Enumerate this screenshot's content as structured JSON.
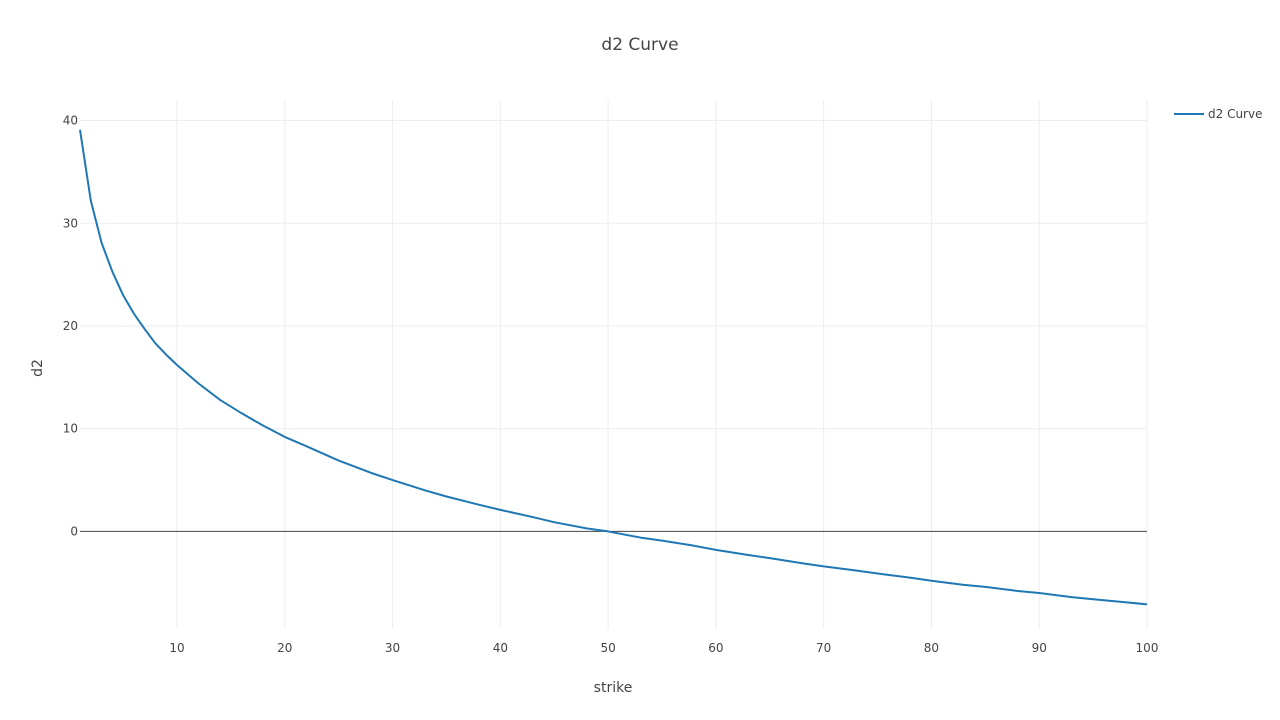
{
  "chart_data": {
    "type": "line",
    "title": "d2 Curve",
    "xlabel": "strike",
    "ylabel": "d2",
    "xlim": [
      1,
      100
    ],
    "ylim": [
      -9.5,
      42
    ],
    "x_ticks": [
      10,
      20,
      30,
      40,
      50,
      60,
      70,
      80,
      90,
      100
    ],
    "y_ticks": [
      0,
      10,
      20,
      30,
      40
    ],
    "grid": true,
    "zero_line": true,
    "legend_position": "top-right",
    "series": [
      {
        "name": "d2 Curve",
        "color": "#1f77b4",
        "x": [
          1,
          2,
          3,
          4,
          5,
          6,
          7,
          8,
          9,
          10,
          12,
          14,
          16,
          18,
          20,
          22,
          25,
          28,
          30,
          33,
          35,
          38,
          40,
          43,
          45,
          48,
          50,
          53,
          55,
          58,
          60,
          63,
          65,
          68,
          70,
          73,
          75,
          78,
          80,
          83,
          85,
          88,
          90,
          93,
          95,
          98,
          100
        ],
        "y": [
          39.1,
          32.2,
          28.1,
          25.3,
          23.0,
          21.2,
          19.7,
          18.3,
          17.2,
          16.2,
          14.4,
          12.8,
          11.5,
          10.3,
          9.2,
          8.3,
          6.9,
          5.7,
          5.0,
          4.0,
          3.4,
          2.6,
          2.1,
          1.4,
          0.9,
          0.3,
          0.0,
          -0.6,
          -0.9,
          -1.4,
          -1.8,
          -2.3,
          -2.6,
          -3.1,
          -3.4,
          -3.8,
          -4.1,
          -4.5,
          -4.8,
          -5.2,
          -5.4,
          -5.8,
          -6.0,
          -6.4,
          -6.6,
          -6.9,
          -7.1
        ]
      }
    ]
  }
}
